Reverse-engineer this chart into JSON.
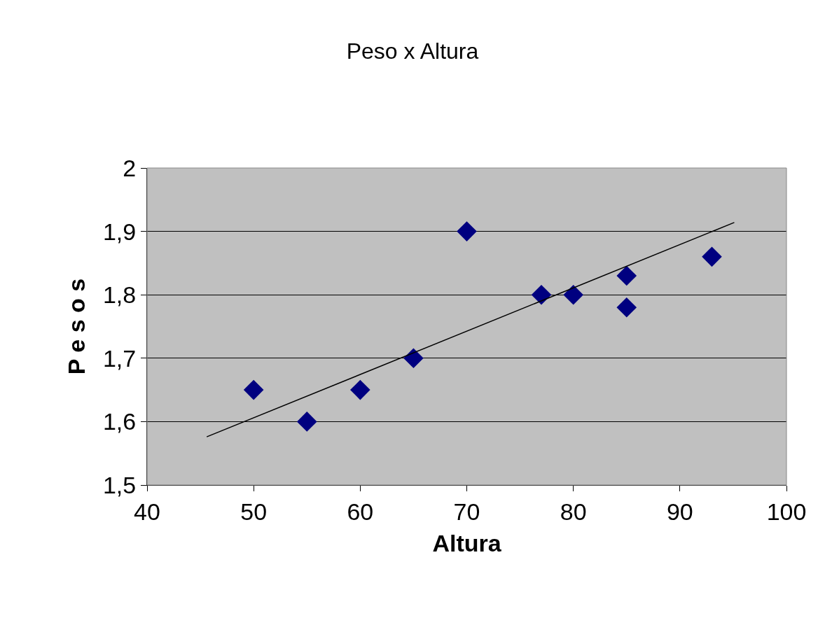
{
  "chart_data": {
    "type": "scatter",
    "title": "Peso x Altura",
    "xlabel": "Altura",
    "ylabel": "P e s o s",
    "x": [
      50,
      55,
      60,
      65,
      70,
      77,
      80,
      85,
      85,
      93
    ],
    "series": [
      {
        "color": "#000080",
        "marker": "diamond",
        "values": [
          1.65,
          1.6,
          1.65,
          1.7,
          1.9,
          1.8,
          1.8,
          1.83,
          1.78,
          1.86
        ]
      },
      {
        "type": "line",
        "color": "#000000",
        "marker": "none",
        "x": [
          45.6,
          95.1
        ],
        "values": [
          1.576,
          1.914
        ]
      }
    ],
    "xlim": [
      40,
      100
    ],
    "xticks": [
      40,
      50,
      60,
      70,
      80,
      90,
      100
    ],
    "ylim": [
      1.5,
      2
    ],
    "yticks": [
      {
        "value": 1.5,
        "label": "1,5"
      },
      {
        "value": 1.6,
        "label": "1,6"
      },
      {
        "value": 1.7,
        "label": "1,7"
      },
      {
        "value": 1.8,
        "label": "1,8"
      },
      {
        "value": 1.9,
        "label": "1,9"
      },
      {
        "value": 2,
        "label": "2"
      }
    ],
    "grid": "y"
  }
}
